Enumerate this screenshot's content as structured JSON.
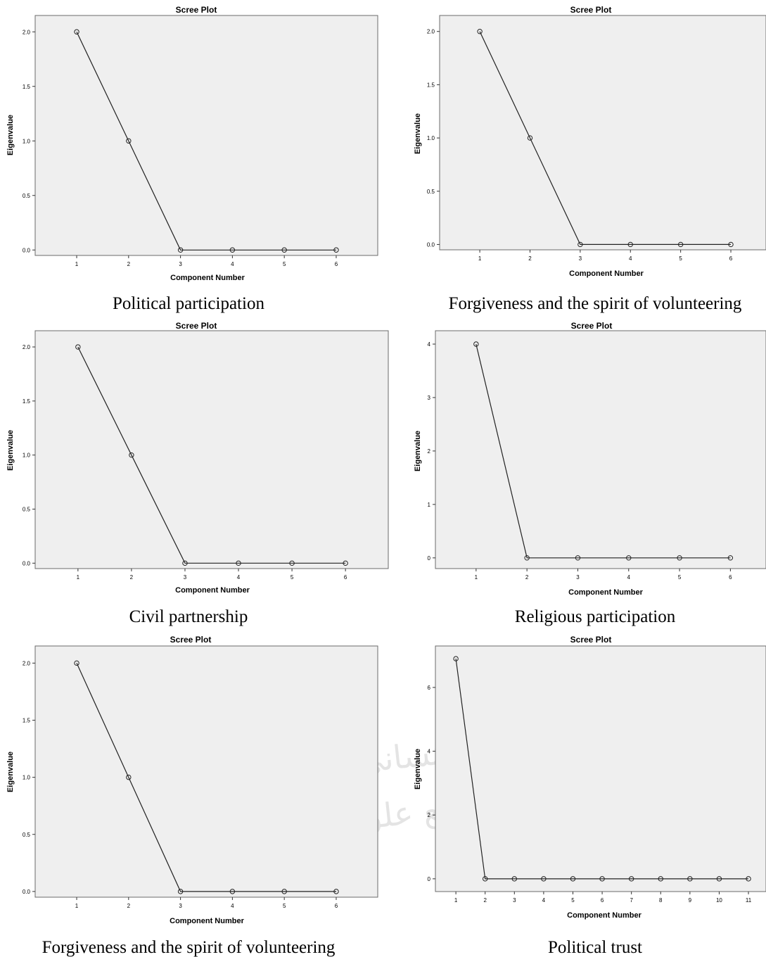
{
  "watermark": {
    "line1": "پژوهشگاه علوم انسانی و مطالعات فرهنگی",
    "line2": "پرتال جامع علوم انسانی"
  },
  "chart_data": [
    {
      "type": "line",
      "title": "Scree Plot",
      "xlabel": "Component Number",
      "ylabel": "Eigenvalue",
      "caption": "Political participation",
      "x": [
        1,
        2,
        3,
        4,
        5,
        6
      ],
      "values": [
        2.0,
        1.0,
        0.0,
        0.0,
        0.0,
        0.0
      ],
      "xlim": [
        0.2,
        6.8
      ],
      "ylim": [
        -0.05,
        2.15
      ],
      "yticks": [
        0.0,
        0.5,
        1.0,
        1.5,
        2.0
      ],
      "ytick_labels": [
        "0.0",
        "0.5",
        "1.0",
        "1.5",
        "2.0"
      ],
      "xtick_labels": [
        "1",
        "2",
        "3",
        "4",
        "5",
        "6"
      ],
      "grid": false
    },
    {
      "type": "line",
      "title": "Scree Plot",
      "xlabel": "Component Number",
      "ylabel": "Eigenvalue",
      "caption": "Forgiveness and the spirit of volunteering",
      "x": [
        1,
        2,
        3,
        4,
        5,
        6
      ],
      "values": [
        2.0,
        1.0,
        0.0,
        0.0,
        0.0,
        0.0
      ],
      "xlim": [
        0.2,
        6.7
      ],
      "ylim": [
        -0.05,
        2.15
      ],
      "yticks": [
        0.0,
        0.5,
        1.0,
        1.5,
        2.0
      ],
      "ytick_labels": [
        "0.0",
        "0.5",
        "1.0",
        "1.5",
        "2.0"
      ],
      "xtick_labels": [
        "1",
        "2",
        "3",
        "4",
        "5",
        "6"
      ],
      "grid": false
    },
    {
      "type": "line",
      "title": "Scree Plot",
      "xlabel": "Component Number",
      "ylabel": "Eigenvalue",
      "caption": "Civil partnership",
      "x": [
        1,
        2,
        3,
        4,
        5,
        6
      ],
      "values": [
        2.0,
        1.0,
        0.0,
        0.0,
        0.0,
        0.0
      ],
      "xlim": [
        0.2,
        6.8
      ],
      "ylim": [
        -0.05,
        2.15
      ],
      "yticks": [
        0.0,
        0.5,
        1.0,
        1.5,
        2.0
      ],
      "ytick_labels": [
        "0.0",
        "0.5",
        "1.0",
        "1.5",
        "2.0"
      ],
      "xtick_labels": [
        "1",
        "2",
        "3",
        "4",
        "5",
        "6"
      ],
      "grid": false
    },
    {
      "type": "line",
      "title": "Scree Plot",
      "xlabel": "Component Number",
      "ylabel": "Eigenvalue",
      "caption": "Religious participation",
      "x": [
        1,
        2,
        3,
        4,
        5,
        6
      ],
      "values": [
        4,
        0,
        0,
        0,
        0,
        0
      ],
      "xlim": [
        0.2,
        6.7
      ],
      "ylim": [
        -0.2,
        4.25
      ],
      "yticks": [
        0,
        1,
        2,
        3,
        4
      ],
      "ytick_labels": [
        "0",
        "1",
        "2",
        "3",
        "4"
      ],
      "xtick_labels": [
        "1",
        "2",
        "3",
        "4",
        "5",
        "6"
      ],
      "grid": false
    },
    {
      "type": "line",
      "title": "Scree Plot",
      "xlabel": "Component Number",
      "ylabel": "Eigenvalue",
      "caption": "Forgiveness and the spirit of volunteering",
      "x": [
        1,
        2,
        3,
        4,
        5,
        6
      ],
      "values": [
        2.0,
        1.0,
        0.0,
        0.0,
        0.0,
        0.0
      ],
      "xlim": [
        0.2,
        6.8
      ],
      "ylim": [
        -0.05,
        2.15
      ],
      "yticks": [
        0.0,
        0.5,
        1.0,
        1.5,
        2.0
      ],
      "ytick_labels": [
        "0.0",
        "0.5",
        "1.0",
        "1.5",
        "2.0"
      ],
      "xtick_labels": [
        "1",
        "2",
        "3",
        "4",
        "5",
        "6"
      ],
      "grid": false
    },
    {
      "type": "line",
      "title": "Scree Plot",
      "xlabel": "Component Number",
      "ylabel": "Eigenvalue",
      "caption": "Political trust",
      "x": [
        1,
        2,
        3,
        4,
        5,
        6,
        7,
        8,
        9,
        10,
        11
      ],
      "values": [
        6.9,
        0,
        0,
        0,
        0,
        0,
        0,
        0,
        0,
        0,
        0
      ],
      "xlim": [
        0.3,
        11.6
      ],
      "ylim": [
        -0.4,
        7.3
      ],
      "yticks": [
        0,
        2,
        4,
        6
      ],
      "ytick_labels": [
        "0",
        "2",
        "4",
        "6"
      ],
      "xtick_labels": [
        "1",
        "2",
        "3",
        "4",
        "5",
        "6",
        "7",
        "8",
        "9",
        "10",
        "11"
      ],
      "grid": false
    }
  ]
}
